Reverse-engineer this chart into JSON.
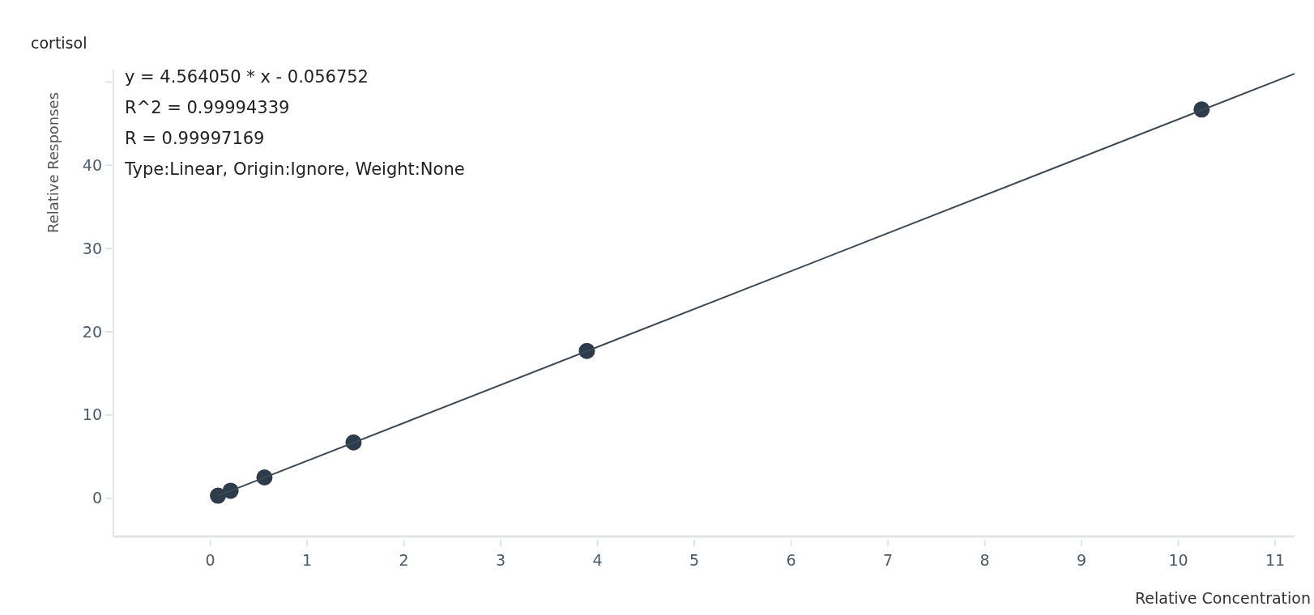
{
  "chart_data": {
    "type": "scatter",
    "title": "cortisol",
    "xlabel": "Relative Concentration",
    "ylabel": "Relative Responses",
    "annotations": [
      "y = 4.564050 * x  - 0.056752",
      "R^2 = 0.99994339",
      "R = 0.99997169",
      "Type:Linear, Origin:Ignore, Weight:None"
    ],
    "series": [
      {
        "color": "#2e3b4a",
        "x": [
          0.08,
          0.21,
          0.56,
          1.48,
          3.89,
          10.24
        ],
        "values": [
          0.3,
          0.9,
          2.5,
          6.7,
          17.7,
          46.7
        ]
      },
      {
        "type": "line",
        "marker": "none",
        "color": "#3d4a55",
        "x": [
          0.08,
          11.2
        ],
        "values": [
          0.3,
          51.0
        ]
      }
    ],
    "xlim": [
      -0.95,
      11.2
    ],
    "ylim": [
      -4.6,
      51.5
    ],
    "xticks": [
      0,
      1,
      2,
      3,
      4,
      5,
      6,
      7,
      8,
      9,
      10,
      11
    ],
    "yticks": [
      0,
      10,
      20,
      30,
      40,
      {
        "value": 50,
        "label": null
      }
    ],
    "marker": "circle",
    "line_style": "solid",
    "grid": false
  }
}
